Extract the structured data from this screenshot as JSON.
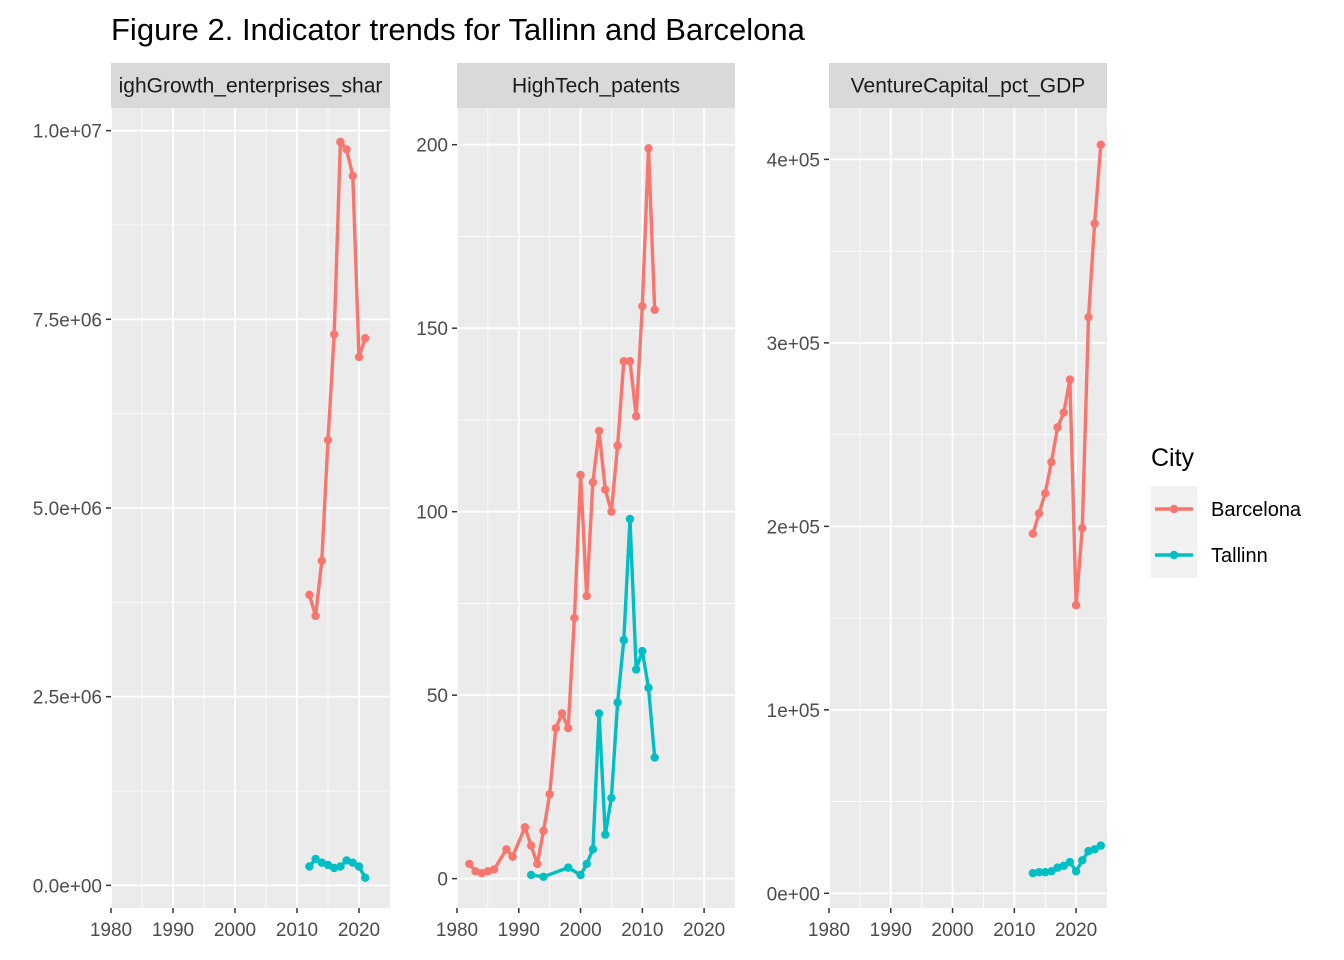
{
  "figure": {
    "title": "Figure 2. Indicator trends for Tallinn and Barcelona"
  },
  "colors": {
    "panel_bg": "#EBEBEB",
    "strip_bg": "#D9D9D9",
    "grid_major": "#FFFFFF",
    "Barcelona": "#F8766D",
    "Tallinn": "#00BFC4"
  },
  "legend": {
    "title": "City",
    "position": "right",
    "items": [
      {
        "label": "Barcelona",
        "color": "#F8766D"
      },
      {
        "label": "Tallinn",
        "color": "#00BFC4"
      }
    ]
  },
  "chart_data": [
    {
      "type": "line",
      "strip": "HighGrowth_enterprises_share",
      "strip_shown": "ighGrowth_enterprises_shar",
      "xlim": [
        1980,
        2025
      ],
      "x_ticks": [
        1980,
        1990,
        2000,
        2010,
        2020
      ],
      "x_tick_labels": [
        "1980",
        "1990",
        "2000",
        "2010",
        "2020"
      ],
      "ylim": [
        -300000,
        10300000
      ],
      "y_ticks": [
        0,
        2500000,
        5000000,
        7500000,
        10000000
      ],
      "y_tick_labels": [
        "0.0e+00",
        "2.5e+06",
        "5.0e+06",
        "7.5e+06",
        "1.0e+07"
      ],
      "grid": true,
      "series": [
        {
          "name": "Barcelona",
          "color": "#F8766D",
          "x": [
            2012,
            2013,
            2014,
            2015,
            2016,
            2017,
            2018,
            2019,
            2020,
            2021
          ],
          "y": [
            3850000,
            3570000,
            4300000,
            5900000,
            7300000,
            9850000,
            9750000,
            9400000,
            7000000,
            7250000
          ]
        },
        {
          "name": "Tallinn",
          "color": "#00BFC4",
          "x": [
            2012,
            2013,
            2014,
            2015,
            2016,
            2017,
            2018,
            2019,
            2020,
            2021
          ],
          "y": [
            250000,
            350000,
            300000,
            270000,
            230000,
            250000,
            330000,
            300000,
            250000,
            100000
          ]
        }
      ]
    },
    {
      "type": "line",
      "strip": "HighTech_patents",
      "strip_shown": "HighTech_patents",
      "xlim": [
        1980,
        2025
      ],
      "x_ticks": [
        1980,
        1990,
        2000,
        2010,
        2020
      ],
      "x_tick_labels": [
        "1980",
        "1990",
        "2000",
        "2010",
        "2020"
      ],
      "ylim": [
        -8,
        210
      ],
      "y_ticks": [
        0,
        50,
        100,
        150,
        200
      ],
      "y_tick_labels": [
        "0",
        "50",
        "100",
        "150",
        "200"
      ],
      "grid": true,
      "series": [
        {
          "name": "Barcelona",
          "color": "#F8766D",
          "x": [
            1982,
            1983,
            1984,
            1985,
            1986,
            1988,
            1989,
            1991,
            1992,
            1993,
            1994,
            1995,
            1996,
            1997,
            1998,
            1999,
            2000,
            2001,
            2002,
            2003,
            2004,
            2005,
            2006,
            2007,
            2008,
            2009,
            2010,
            2011,
            2012
          ],
          "y": [
            4,
            2,
            1.5,
            2,
            2.5,
            8,
            6,
            14,
            9,
            4,
            13,
            23,
            41,
            45,
            41,
            71,
            110,
            77,
            108,
            122,
            106,
            100,
            118,
            141,
            141,
            126,
            156,
            199,
            155
          ]
        },
        {
          "name": "Tallinn",
          "color": "#00BFC4",
          "x": [
            1992,
            1994,
            1998,
            2000,
            2001,
            2002,
            2003,
            2004,
            2005,
            2006,
            2007,
            2008,
            2009,
            2010,
            2011,
            2012
          ],
          "y": [
            1,
            0.5,
            3,
            1,
            4,
            8,
            45,
            12,
            22,
            48,
            65,
            98,
            57,
            62,
            52,
            33
          ]
        }
      ]
    },
    {
      "type": "line",
      "strip": "VentureCapital_pct_GDP",
      "strip_shown": "VentureCapital_pct_GDP",
      "xlim": [
        1980,
        2025
      ],
      "x_ticks": [
        1980,
        1990,
        2000,
        2010,
        2020
      ],
      "x_tick_labels": [
        "1980",
        "1990",
        "2000",
        "2010",
        "2020"
      ],
      "ylim": [
        -8000,
        428000
      ],
      "y_ticks": [
        0,
        100000,
        200000,
        300000,
        400000
      ],
      "y_tick_labels": [
        "0e+00",
        "1e+05",
        "2e+05",
        "3e+05",
        "4e+05"
      ],
      "grid": true,
      "series": [
        {
          "name": "Barcelona",
          "color": "#F8766D",
          "x": [
            2013,
            2014,
            2015,
            2016,
            2017,
            2018,
            2019,
            2020,
            2021,
            2022,
            2023,
            2024
          ],
          "y": [
            196000,
            207000,
            218000,
            235000,
            254000,
            262000,
            280000,
            157000,
            199000,
            314000,
            365000,
            408000
          ]
        },
        {
          "name": "Tallinn",
          "color": "#00BFC4",
          "x": [
            2013,
            2014,
            2015,
            2016,
            2017,
            2018,
            2019,
            2020,
            2021,
            2022,
            2023,
            2024
          ],
          "y": [
            11000,
            11500,
            11500,
            12000,
            14000,
            15000,
            17000,
            12000,
            18000,
            23000,
            24000,
            26000
          ]
        }
      ]
    }
  ]
}
